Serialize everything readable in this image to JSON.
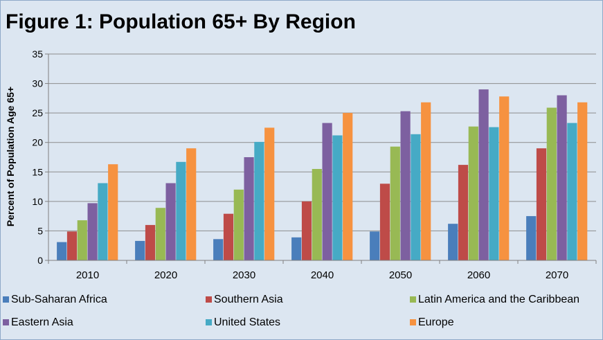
{
  "chart_data": {
    "type": "bar",
    "title": "Figure 1: Population 65+ By Region",
    "xlabel": "",
    "ylabel": "Percent of Population Age 65+",
    "ylim": [
      0,
      35
    ],
    "yticks": [
      0,
      5,
      10,
      15,
      20,
      25,
      30,
      35
    ],
    "grid": true,
    "legend_position": "bottom",
    "categories": [
      "2010",
      "2020",
      "2030",
      "2040",
      "2050",
      "2060",
      "2070"
    ],
    "series": [
      {
        "name": "Sub-Saharan Africa",
        "color": "#4a7ebb",
        "values": [
          3.1,
          3.3,
          3.6,
          3.9,
          4.9,
          6.2,
          7.5
        ]
      },
      {
        "name": "Southern Asia",
        "color": "#be4b48",
        "values": [
          4.9,
          6.0,
          7.9,
          10.0,
          13.0,
          16.2,
          19.0
        ]
      },
      {
        "name": "Latin America and the Caribbean",
        "color": "#98b954",
        "values": [
          6.8,
          8.9,
          12.0,
          15.5,
          19.3,
          22.7,
          25.9
        ]
      },
      {
        "name": "Eastern Asia",
        "color": "#7d60a0",
        "values": [
          9.7,
          13.1,
          17.5,
          23.3,
          25.3,
          29.0,
          28.0
        ]
      },
      {
        "name": "United States",
        "color": "#46aac5",
        "values": [
          13.1,
          16.7,
          20.1,
          21.2,
          21.4,
          22.6,
          23.3
        ]
      },
      {
        "name": "Europe",
        "color": "#f69240",
        "values": [
          16.3,
          19.0,
          22.5,
          25.0,
          26.8,
          27.8,
          26.8
        ]
      }
    ]
  }
}
